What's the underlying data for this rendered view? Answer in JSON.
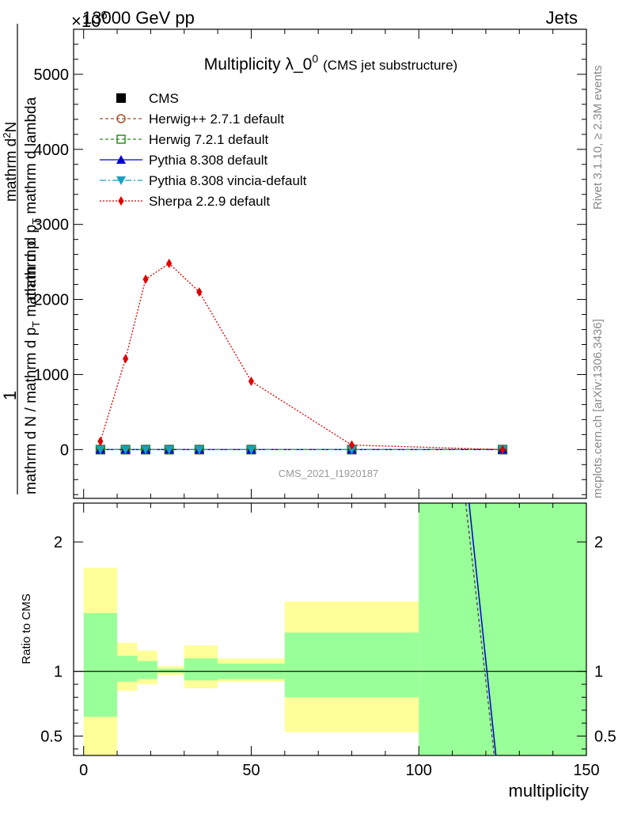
{
  "header": {
    "left": "13000 GeV pp",
    "right": "Jets",
    "exponent": "×10",
    "exponent_power": "6"
  },
  "side_labels": {
    "rivet": "Rivet 3.1.10, ≥ 2.3M events",
    "mcplots": "mcplots.cern.ch [arXiv:1306.3436]"
  },
  "watermark": "CMS_2021_I1920187",
  "main_ylabel_parts": [
    "1",
    "mathrm d N / mathrm d p_T mathrm d p",
    "mathrm d N",
    "mathrm d p_T mathrm d lambda"
  ],
  "main_ylabel_lines": {
    "numerator_one": "1",
    "denominator": "mathrm d N / mathrm d p",
    "denominator_sub": "T",
    "denominator_tail": " mathrm d p",
    "frac_top": "mathrm d",
    "frac_top_sup": "2",
    "frac_top_tail": "N",
    "frac_bottom": "mathrm d p",
    "frac_bottom_sub": "T",
    "frac_bottom_tail": " mathrm d lambda"
  },
  "chart_data": [
    {
      "type": "line",
      "title": "Multiplicity λ_0",
      "title_sup": "0",
      "title_suffix": "(CMS jet substructure)",
      "xlim": [
        -3,
        150
      ],
      "ylim": [
        -650,
        5600
      ],
      "y_scale_note": "×10^6",
      "yticks": [
        0,
        1000,
        2000,
        3000,
        4000,
        5000
      ],
      "ytick_labels": [
        "0",
        "1000",
        "2000",
        "3000",
        "4000",
        "5000"
      ],
      "legend_position": "top-left",
      "series": [
        {
          "name": "CMS",
          "color": "#000000",
          "marker": "square-filled",
          "x": [
            5,
            12.5,
            18.5,
            25.5,
            34.5,
            50,
            80,
            125
          ],
          "y": [
            0,
            0,
            0,
            0,
            0,
            0,
            0,
            0
          ]
        },
        {
          "name": "Herwig++ 2.7.1 default",
          "color": "#a0522d",
          "marker": "circle-open",
          "dash": "4,3",
          "x": [
            5,
            12.5,
            18.5,
            25.5,
            34.5,
            50,
            80,
            125
          ],
          "y": [
            0,
            0,
            0,
            0,
            0,
            0,
            0,
            0
          ]
        },
        {
          "name": "Herwig 7.2.1 default",
          "color": "#2e8b22",
          "marker": "square-open",
          "dash": "4,3",
          "x": [
            5,
            12.5,
            18.5,
            25.5,
            34.5,
            50,
            80,
            125
          ],
          "y": [
            0,
            0,
            0,
            0,
            0,
            0,
            0,
            0
          ]
        },
        {
          "name": "Pythia 8.308 default",
          "color": "#0000cc",
          "marker": "triangle-up",
          "dash": "",
          "x": [
            5,
            12.5,
            18.5,
            25.5,
            34.5,
            50,
            80,
            125
          ],
          "y": [
            0,
            0,
            0,
            0,
            0,
            0,
            0,
            0
          ]
        },
        {
          "name": "Pythia 8.308 vincia-default",
          "color": "#1a9fbf",
          "marker": "triangle-down",
          "dash": "8,3,2,3",
          "x": [
            5,
            12.5,
            18.5,
            25.5,
            34.5,
            50,
            80,
            125
          ],
          "y": [
            0,
            0,
            0,
            0,
            0,
            0,
            0,
            0
          ]
        },
        {
          "name": "Sherpa 2.2.9 default",
          "color": "#dd0000",
          "marker": "diamond",
          "dash": "2,2",
          "x": [
            5,
            12.5,
            18.5,
            25.5,
            34.5,
            50,
            80,
            125
          ],
          "y": [
            110,
            1210,
            2270,
            2480,
            2100,
            910,
            60,
            0
          ]
        }
      ]
    },
    {
      "type": "area",
      "ylabel": "Ratio to CMS",
      "xlabel": "multiplicity",
      "xlim": [
        -3,
        150
      ],
      "ylim": [
        0.35,
        2.3
      ],
      "xticks": [
        0,
        50,
        100,
        150
      ],
      "xtick_labels": [
        "0",
        "50",
        "100",
        "150"
      ],
      "yticks": [
        0.5,
        1,
        2
      ],
      "ytick_labels": [
        "0.5",
        "1",
        "2"
      ],
      "bands": [
        {
          "x0": 0,
          "x1": 10,
          "y_lo": 0.35,
          "y_hi": 1.8,
          "g_lo": 0.65,
          "g_hi": 1.45
        },
        {
          "x0": 10,
          "x1": 16,
          "y_lo": 0.85,
          "y_hi": 1.22,
          "g_lo": 0.92,
          "g_hi": 1.12
        },
        {
          "x0": 16,
          "x1": 22,
          "y_lo": 0.9,
          "y_hi": 1.16,
          "g_lo": 0.94,
          "g_hi": 1.08
        },
        {
          "x0": 22,
          "x1": 30,
          "y_lo": 0.97,
          "y_hi": 1.04,
          "g_lo": 0.99,
          "g_hi": 1.02
        },
        {
          "x0": 30,
          "x1": 40,
          "y_lo": 0.87,
          "y_hi": 1.2,
          "g_lo": 0.93,
          "g_hi": 1.1
        },
        {
          "x0": 40,
          "x1": 60,
          "y_lo": 0.92,
          "y_hi": 1.1,
          "g_lo": 0.94,
          "g_hi": 1.06
        },
        {
          "x0": 60,
          "x1": 100,
          "y_lo": 0.53,
          "y_hi": 1.54,
          "g_lo": 0.8,
          "g_hi": 1.3
        },
        {
          "x0": 100,
          "x1": 150,
          "y_lo": 0.35,
          "y_hi": 2.3,
          "g_lo": 0.35,
          "g_hi": 2.3
        }
      ],
      "ratio_lines": [
        {
          "name": "Pythia 8.308 default",
          "color": "#0000cc",
          "dash": "",
          "x": [
            115,
            123
          ],
          "y": [
            2.3,
            0.35
          ]
        },
        {
          "name": "Herwig 7.2.1 default",
          "color": "#555555",
          "dash": "4,3",
          "x": [
            114,
            122.5
          ],
          "y": [
            2.3,
            0.35
          ]
        }
      ],
      "band_colors": {
        "outer": "#ffff99",
        "inner": "#99ff99"
      }
    }
  ]
}
